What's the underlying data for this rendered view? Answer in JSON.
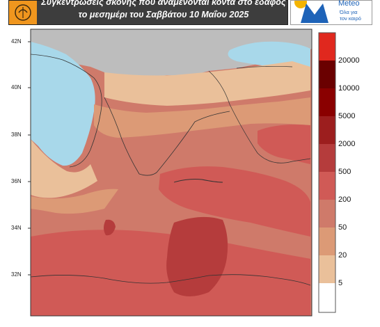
{
  "header": {
    "title_line1": "Συγκεντρώσεις σκόνης που αναμένονται κοντά στο έδαφος",
    "title_line2": "το μεσημέρι του Σαββάτου 10 Μαΐου 2025"
  },
  "logo": {
    "name": "Meteo",
    "slogan_line1": "Όλα για",
    "slogan_line2": "τον καιρό",
    "accent_color": "#1e63b8",
    "sun_color": "#f4b400"
  },
  "map": {
    "lat_labels": [
      "42N",
      "40N",
      "38N",
      "36N",
      "34N",
      "32N"
    ],
    "colors": {
      "sea": "#a8d8ea",
      "land_no_data": "#bdbdbd",
      "band_5_20": "#eac09a",
      "band_20_50": "#dc9a76",
      "band_50_200": "#cf7a6a",
      "band_200_500": "#d05a56",
      "band_500_2000": "#b53c3c"
    }
  },
  "colorbar": {
    "labels": [
      "20000",
      "10000",
      "5000",
      "2000",
      "500",
      "200",
      "50",
      "20",
      "5"
    ],
    "colors": [
      "#e0281e",
      "#6a0000",
      "#8a0000",
      "#9c1e1e",
      "#b53c3c",
      "#d05a56",
      "#cf7a6a",
      "#dc9a76",
      "#eac09a",
      "#ffffff"
    ]
  }
}
